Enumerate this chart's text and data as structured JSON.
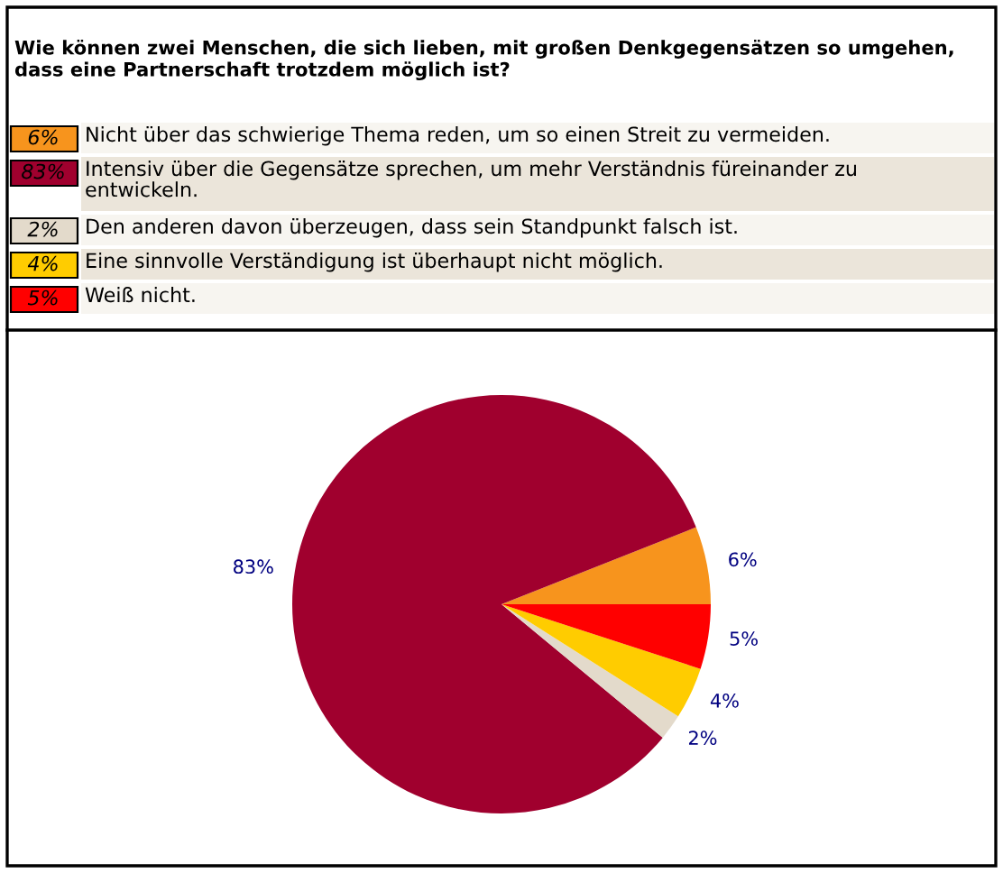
{
  "chart_data": {
    "type": "pie",
    "title": "Wie können zwei Menschen, die sich lieben, mit großen Denkgegensätzen so umgehen, dass eine Partnerschaft trotzdem möglich ist?",
    "categories": [
      "Nicht über das schwierige Thema reden, um so einen Streit zu vermeiden.",
      "Intensiv über die Gegensätze sprechen, um mehr Verständnis füreinander zu entwickeln.",
      "Den anderen davon überzeugen, dass sein Standpunkt falsch ist.",
      "Eine sinnvolle Verständigung ist überhaupt nicht möglich.",
      "Weiß nicht."
    ],
    "values": [
      6,
      83,
      2,
      4,
      5
    ],
    "colors": [
      "#f7941d",
      "#a0002e",
      "#e3dacb",
      "#ffcc00",
      "#ff0000"
    ],
    "value_labels": [
      "6%",
      "83%",
      "2%",
      "4%",
      "5%"
    ],
    "legend": "top"
  }
}
